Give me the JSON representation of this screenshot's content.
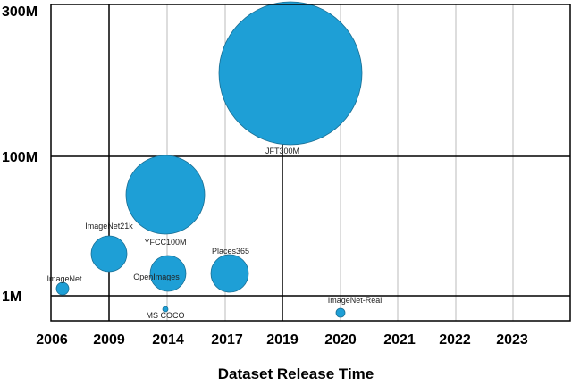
{
  "chart_data": {
    "type": "scatter",
    "title": "",
    "xlabel": "Dataset Release Time",
    "ylabel": "",
    "x_tick_labels": [
      "2006",
      "2009",
      "2014",
      "2017",
      "2019",
      "2020",
      "2021",
      "2022",
      "2023"
    ],
    "y_tick_labels": [
      "1M",
      "100M",
      "300M"
    ],
    "grid": true,
    "bubble_color": "#1e9fd6",
    "series": [
      {
        "points": [
          {
            "label": "ImageNet",
            "x": "2006",
            "y": "1M"
          },
          {
            "label": "ImageNet21k",
            "x": "2009",
            "y": "14M"
          },
          {
            "label": "YFCC100M",
            "x": "2014",
            "y": "100M"
          },
          {
            "label": "OpenImages",
            "x": "2014",
            "y": "9M"
          },
          {
            "label": "MS COCO",
            "x": "2014",
            "y": "0.33M"
          },
          {
            "label": "Places365",
            "x": "2017",
            "y": "10M"
          },
          {
            "label": "JFT300M",
            "x": "2019",
            "y": "300M"
          },
          {
            "label": "ImageNet-Real",
            "x": "2020",
            "y": "0.05M"
          }
        ]
      }
    ]
  }
}
